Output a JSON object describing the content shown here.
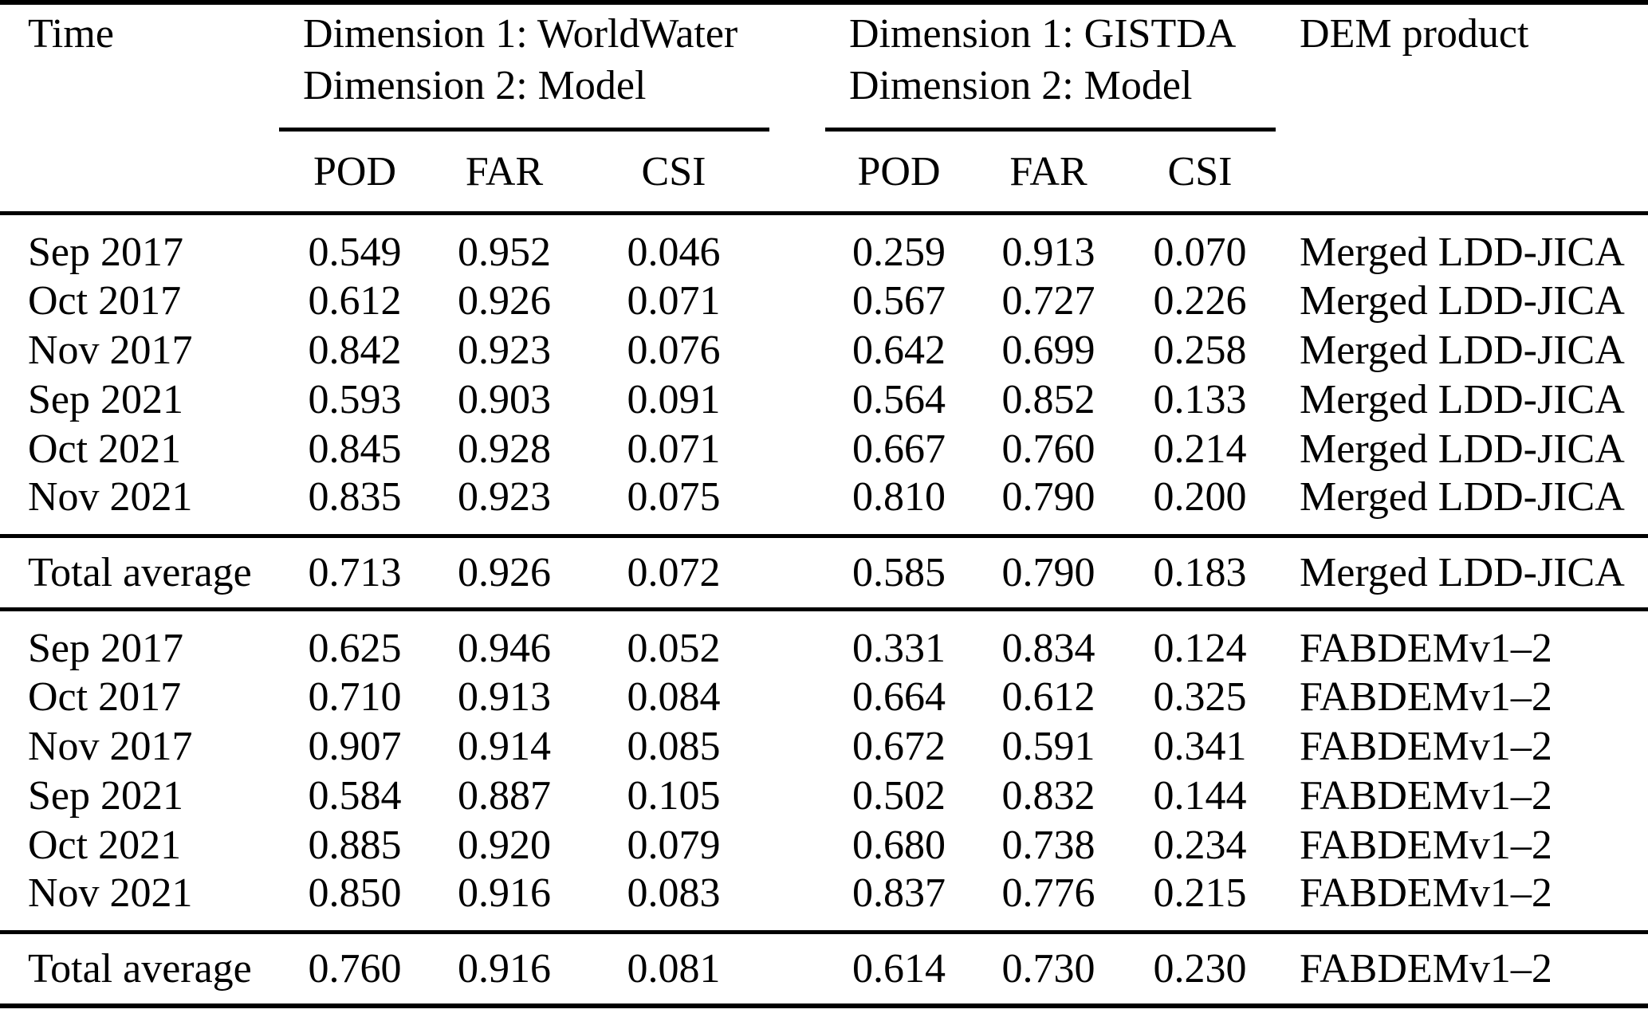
{
  "table": {
    "header": {
      "time": "Time",
      "group1_line1": "Dimension 1: WorldWater",
      "group1_line2": "Dimension 2: Model",
      "group2_line1": "Dimension 1: GISTDA",
      "group2_line2": "Dimension 2: Model",
      "dem": "DEM product",
      "metrics": [
        "POD",
        "FAR",
        "CSI"
      ]
    },
    "block1": {
      "rows": [
        {
          "time": "Sep 2017",
          "values": [
            "0.549",
            "0.952",
            "0.046",
            "0.259",
            "0.913",
            "0.070"
          ],
          "dem": "Merged LDD-JICA"
        },
        {
          "time": "Oct 2017",
          "values": [
            "0.612",
            "0.926",
            "0.071",
            "0.567",
            "0.727",
            "0.226"
          ],
          "dem": "Merged LDD-JICA"
        },
        {
          "time": "Nov 2017",
          "values": [
            "0.842",
            "0.923",
            "0.076",
            "0.642",
            "0.699",
            "0.258"
          ],
          "dem": "Merged LDD-JICA"
        },
        {
          "time": "Sep 2021",
          "values": [
            "0.593",
            "0.903",
            "0.091",
            "0.564",
            "0.852",
            "0.133"
          ],
          "dem": "Merged LDD-JICA"
        },
        {
          "time": "Oct 2021",
          "values": [
            "0.845",
            "0.928",
            "0.071",
            "0.667",
            "0.760",
            "0.214"
          ],
          "dem": "Merged LDD-JICA"
        },
        {
          "time": "Nov 2021",
          "values": [
            "0.835",
            "0.923",
            "0.075",
            "0.810",
            "0.790",
            "0.200"
          ],
          "dem": "Merged LDD-JICA"
        }
      ],
      "total": {
        "time": "Total average",
        "values": [
          "0.713",
          "0.926",
          "0.072",
          "0.585",
          "0.790",
          "0.183"
        ],
        "dem": "Merged LDD-JICA"
      }
    },
    "block2": {
      "rows": [
        {
          "time": "Sep 2017",
          "values": [
            "0.625",
            "0.946",
            "0.052",
            "0.331",
            "0.834",
            "0.124"
          ],
          "dem": "FABDEMv1–2"
        },
        {
          "time": "Oct 2017",
          "values": [
            "0.710",
            "0.913",
            "0.084",
            "0.664",
            "0.612",
            "0.325"
          ],
          "dem": "FABDEMv1–2"
        },
        {
          "time": "Nov 2017",
          "values": [
            "0.907",
            "0.914",
            "0.085",
            "0.672",
            "0.591",
            "0.341"
          ],
          "dem": "FABDEMv1–2"
        },
        {
          "time": "Sep 2021",
          "values": [
            "0.584",
            "0.887",
            "0.105",
            "0.502",
            "0.832",
            "0.144"
          ],
          "dem": "FABDEMv1–2"
        },
        {
          "time": "Oct 2021",
          "values": [
            "0.885",
            "0.920",
            "0.079",
            "0.680",
            "0.738",
            "0.234"
          ],
          "dem": "FABDEMv1–2"
        },
        {
          "time": "Nov 2021",
          "values": [
            "0.850",
            "0.916",
            "0.083",
            "0.837",
            "0.776",
            "0.215"
          ],
          "dem": "FABDEMv1–2"
        }
      ],
      "total": {
        "time": "Total average",
        "values": [
          "0.760",
          "0.916",
          "0.081",
          "0.614",
          "0.730",
          "0.230"
        ],
        "dem": "FABDEMv1–2"
      }
    },
    "colors": {
      "text": "#000000",
      "rule": "#000000",
      "background": "#ffffff"
    }
  }
}
